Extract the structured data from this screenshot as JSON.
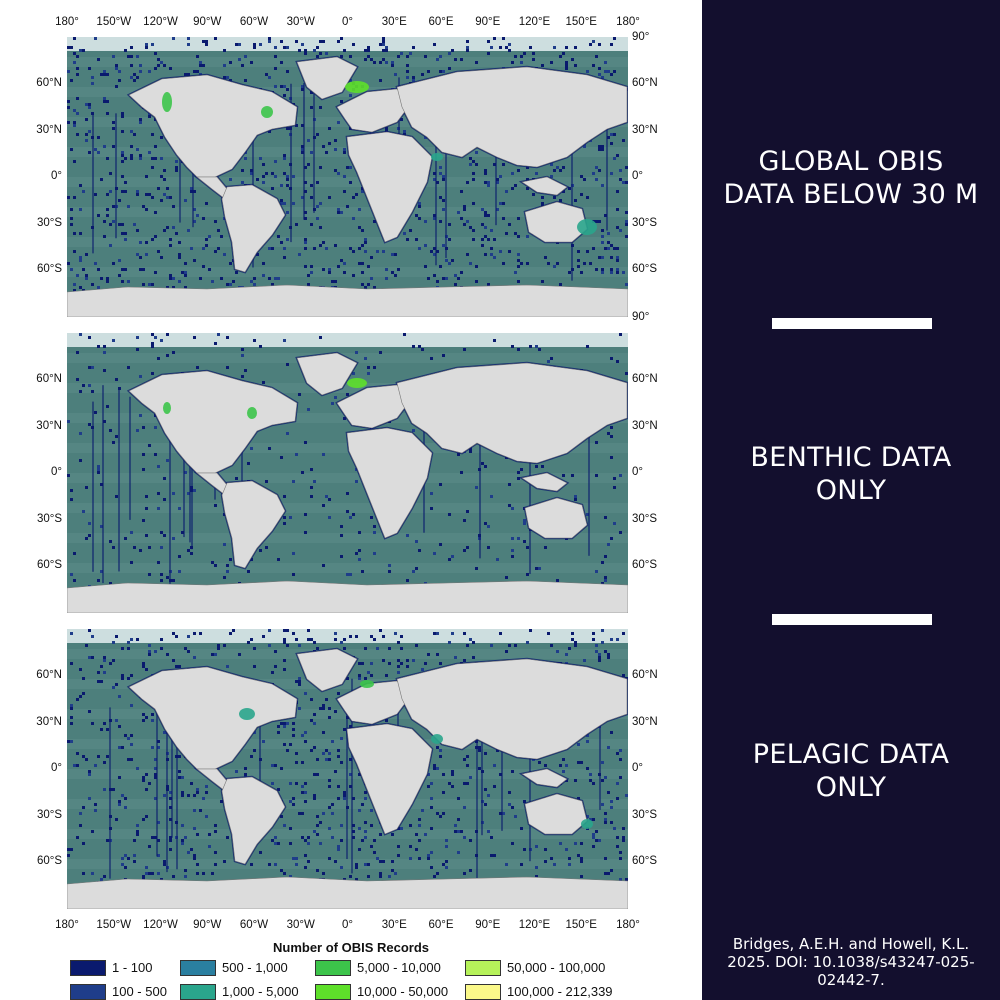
{
  "panels": [
    {
      "label": "GLOBAL OBIS\nDATA BELOW 30 M"
    },
    {
      "label": "BENTHIC DATA\nONLY"
    },
    {
      "label": "PELAGIC DATA\nONLY"
    }
  ],
  "citation": "Bridges, A.E.H. and Howell, K.L.\n2025. DOI: 10.1038/s43247-025-\n02442-7.",
  "axes": {
    "longitude_ticks": [
      "180°",
      "150°W",
      "120°W",
      "90°W",
      "60°W",
      "30°W",
      "0°",
      "30°E",
      "60°E",
      "90°E",
      "120°E",
      "150°E",
      "180°"
    ],
    "latitude_ticks": [
      "90°",
      "60°N",
      "30°N",
      "0°",
      "30°S",
      "60°S",
      "90°"
    ]
  },
  "legend": {
    "title": "Number of OBIS Records",
    "items": [
      {
        "label": "1 - 100",
        "color": "#0a1a6e"
      },
      {
        "label": "100 - 500",
        "color": "#1f3d8a"
      },
      {
        "label": "500 - 1,000",
        "color": "#2a7fa0"
      },
      {
        "label": "1,000 - 5,000",
        "color": "#2aa58c"
      },
      {
        "label": "5,000 - 10,000",
        "color": "#3cc44a"
      },
      {
        "label": "10,000 - 50,000",
        "color": "#5ee02a"
      },
      {
        "label": "50,000 - 100,000",
        "color": "#b6f25a"
      },
      {
        "label": "100,000 - 212,339",
        "color": "#fbf98a"
      }
    ]
  },
  "colors": {
    "background_panel": "#130f2e",
    "ocean": "#4d7f7c",
    "land": "#dcdcdc",
    "ice": "#eef6f8"
  }
}
